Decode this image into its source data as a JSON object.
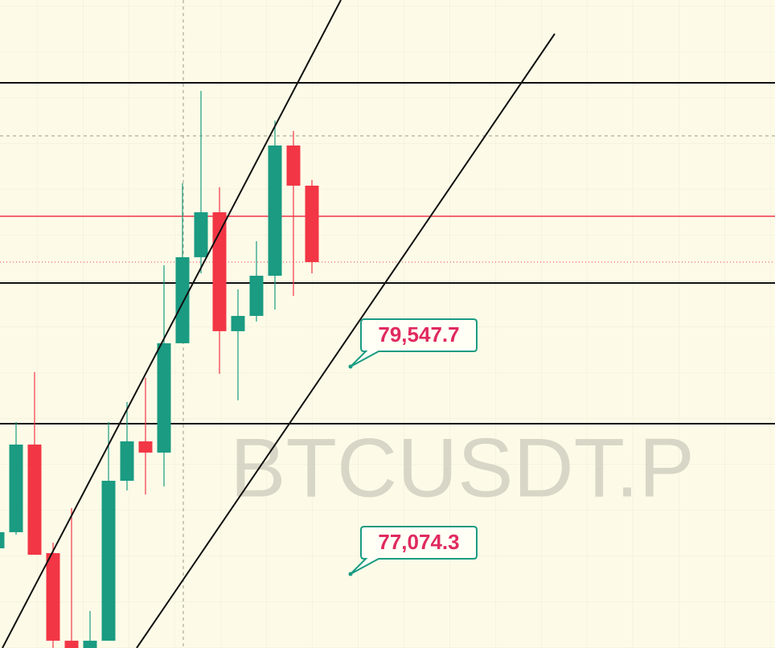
{
  "chart_data": {
    "type": "candlestick",
    "watermark": "BTCUSDT.P",
    "up_color": "#1a9b82",
    "down_color": "#f23645",
    "ylim": [
      76192,
      83919
    ],
    "open": [
      77381,
      77573,
      78618,
      77323,
      76279,
      76192,
      76279,
      78186,
      78656,
      78522,
      79826,
      80852,
      81388,
      79970,
      80152,
      80631,
      82184,
      81705
    ],
    "high": [
      77592,
      78886,
      79481,
      77448,
      77860,
      76633,
      78886,
      79126,
      79414,
      80756,
      81734,
      82836,
      81686,
      80468,
      81043,
      82481,
      82357,
      81772
    ],
    "low": [
      77304,
      77544,
      77304,
      76192,
      76192,
      76192,
      76279,
      78071,
      78023,
      78119,
      79826,
      80660,
      79461,
      79145,
      80085,
      80228,
      80391,
      80660
    ],
    "close": [
      77573,
      78618,
      77304,
      76279,
      76192,
      76279,
      78186,
      78656,
      78522,
      79826,
      80852,
      81388,
      79970,
      80152,
      80631,
      82184,
      81705,
      80794
    ],
    "annotations": [
      {
        "value": 79547.7,
        "label": "79,547.7"
      },
      {
        "value": 77074.3,
        "label": "77,074.3"
      }
    ]
  }
}
